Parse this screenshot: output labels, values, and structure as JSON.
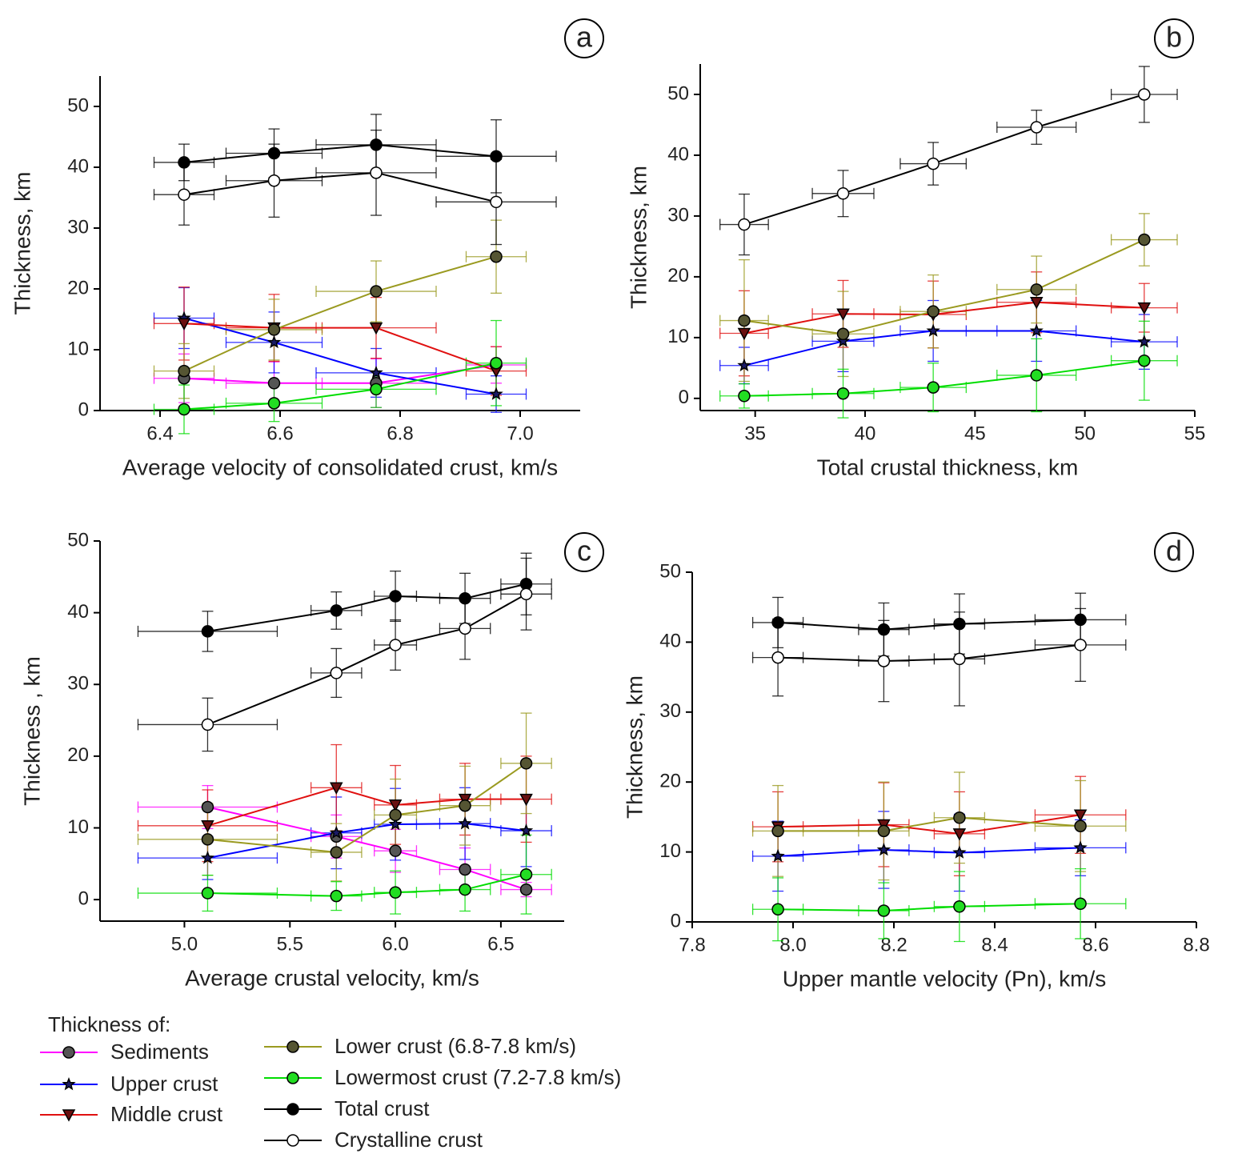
{
  "chart_data": [
    {
      "type": "line",
      "label": "a",
      "x_label": "Average velocity of consolidated crust, km/s",
      "y_label": "Thickness, km",
      "xlim": [
        6.3,
        7.1
      ],
      "ylim": [
        0,
        55
      ],
      "xticks": [
        6.4,
        6.6,
        6.8,
        {
          "value": 7,
          "label": "7.0"
        }
      ],
      "yticks": [
        0,
        10,
        20,
        30,
        40,
        50
      ],
      "x": [
        6.44,
        6.59,
        6.76,
        6.96
      ],
      "series": [
        {
          "name": "Sediments",
          "color": "#ff00ff",
          "marker": "circle",
          "marker_color": "#555555",
          "values": [
            5.3,
            4.5,
            4.5,
            7.5
          ],
          "yerr": [
            4,
            3.5,
            4,
            3
          ],
          "xerr": [
            0.05,
            0.08,
            0.1,
            0.05
          ]
        },
        {
          "name": "Upper crust",
          "color": "#0000ff",
          "marker": "star",
          "marker_color": "#1a1a66",
          "values": [
            15.2,
            11.2,
            6.2,
            2.7
          ],
          "yerr": [
            5,
            5,
            4,
            3
          ],
          "xerr": [
            0.05,
            0.08,
            0.1,
            0.05
          ]
        },
        {
          "name": "Middle crust",
          "color": "#e01010",
          "marker": "triangle",
          "marker_color": "#6a1010",
          "values": [
            14.3,
            13.6,
            13.6,
            6.5
          ],
          "yerr": [
            6,
            5.5,
            5,
            4
          ],
          "xerr": [
            0.05,
            0.08,
            0.1,
            0.05
          ]
        },
        {
          "name": "Lower crust (6.8-7.8 km/s)",
          "color": "#9a9a20",
          "marker": "circle",
          "marker_color": "#555533",
          "values": [
            6.5,
            13.3,
            19.6,
            25.3
          ],
          "yerr": [
            4.5,
            5,
            5,
            6
          ],
          "xerr": [
            0.05,
            0.08,
            0.1,
            0.05
          ]
        },
        {
          "name": "Lowermost crust (7.2-7.8 km/s)",
          "color": "#00dd00",
          "marker": "circle",
          "marker_color": "#22dd22",
          "values": [
            0.2,
            1.2,
            3.5,
            7.8
          ],
          "yerr": [
            4,
            3,
            3,
            7
          ],
          "xerr": [
            0.05,
            0.08,
            0.1,
            0.05
          ]
        },
        {
          "name": "Total crust",
          "color": "#000000",
          "marker": "circle",
          "marker_color": "#000000",
          "values": [
            40.8,
            42.3,
            43.7,
            41.8
          ],
          "yerr": [
            3,
            4,
            5,
            6
          ],
          "xerr": [
            0.05,
            0.08,
            0.1,
            0.1
          ]
        },
        {
          "name": "Crystalline crust",
          "color": "#000000",
          "marker": "circle",
          "marker_color": "#ffffff",
          "values": [
            35.5,
            37.8,
            39.1,
            34.3
          ],
          "yerr": [
            5,
            6,
            7,
            7
          ],
          "xerr": [
            0.05,
            0.08,
            0.1,
            0.1
          ]
        }
      ]
    },
    {
      "type": "line",
      "label": "b",
      "x_label": "Total crustal thickness, km",
      "y_label": "Thickness, km",
      "xlim": [
        32.5,
        55
      ],
      "ylim": [
        -2,
        55
      ],
      "xticks": [
        35,
        40,
        45,
        50,
        55
      ],
      "yticks": [
        0,
        10,
        20,
        30,
        40,
        50
      ],
      "x": [
        34.5,
        39,
        43.1,
        47.8,
        52.7
      ],
      "series": [
        {
          "name": "Upper crust",
          "color": "#0000ff",
          "marker": "star",
          "marker_color": "#1a1a66",
          "values": [
            5.4,
            9.4,
            11.1,
            11.1,
            9.3
          ],
          "yerr": [
            3,
            5,
            5,
            5,
            4.5
          ],
          "xerr": [
            1.1,
            1.4,
            1.5,
            1.8,
            1.5
          ]
        },
        {
          "name": "Middle crust",
          "color": "#e01010",
          "marker": "triangle",
          "marker_color": "#6a1010",
          "values": [
            10.7,
            13.9,
            13.8,
            15.8,
            14.9
          ],
          "yerr": [
            7,
            5.5,
            5.5,
            5,
            4
          ],
          "xerr": [
            1.1,
            1.4,
            1.5,
            1.8,
            1.5
          ]
        },
        {
          "name": "Lower crust (6.8-7.8 km/s)",
          "color": "#9a9a20",
          "marker": "circle",
          "marker_color": "#555533",
          "values": [
            12.8,
            10.6,
            14.3,
            17.9,
            26.1
          ],
          "yerr": [
            10,
            7,
            6,
            5.5,
            4.3
          ],
          "xerr": [
            1.1,
            1.4,
            1.5,
            1.8,
            1.5
          ]
        },
        {
          "name": "Lowermost crust (7.2-7.8 km/s)",
          "color": "#00dd00",
          "marker": "circle",
          "marker_color": "#22dd22",
          "values": [
            0.4,
            0.8,
            1.8,
            3.8,
            6.2
          ],
          "yerr": [
            2,
            4,
            4,
            6,
            6.5
          ],
          "xerr": [
            1.1,
            1.4,
            1.5,
            1.8,
            1.5
          ]
        },
        {
          "name": "Crystalline crust",
          "color": "#000000",
          "marker": "circle",
          "marker_color": "#ffffff",
          "values": [
            28.6,
            33.7,
            38.6,
            44.6,
            50
          ],
          "yerr": [
            5,
            3.8,
            3.5,
            2.8,
            4.6
          ],
          "xerr": [
            1.1,
            1.4,
            1.5,
            1.8,
            1.5
          ]
        }
      ]
    },
    {
      "type": "line",
      "label": "c",
      "x_label": "Average crustal velocity, km/s",
      "y_label": "Thickness , km",
      "xlim": [
        4.6,
        6.8
      ],
      "ylim": [
        -3,
        50
      ],
      "xticks": [
        {
          "value": 5,
          "label": "5.0"
        },
        5.5,
        {
          "value": 6,
          "label": "6.0"
        },
        6.5
      ],
      "yticks": [
        0,
        10,
        20,
        30,
        40,
        50
      ],
      "x": [
        5.11,
        5.72,
        6.0,
        6.33,
        6.62
      ],
      "series": [
        {
          "name": "Sediments",
          "color": "#ff00ff",
          "marker": "circle",
          "marker_color": "#555555",
          "values": [
            12.9,
            8.8,
            6.8,
            4.2,
            1.4
          ],
          "yerr": [
            3,
            3,
            3,
            3,
            1
          ],
          "xerr": [
            0.33,
            0.12,
            0.1,
            0.12,
            0.12
          ]
        },
        {
          "name": "Upper crust",
          "color": "#0000ff",
          "marker": "star",
          "marker_color": "#1a1a66",
          "values": [
            5.8,
            9.3,
            10.5,
            10.6,
            9.6
          ],
          "yerr": [
            3,
            5,
            5,
            5,
            5
          ],
          "xerr": [
            0.33,
            0.12,
            0.1,
            0.12,
            0.12
          ]
        },
        {
          "name": "Middle crust",
          "color": "#e01010",
          "marker": "triangle",
          "marker_color": "#6a1010",
          "values": [
            10.3,
            15.6,
            13.2,
            14,
            14
          ],
          "yerr": [
            5,
            6,
            5.5,
            5,
            6
          ],
          "xerr": [
            0.33,
            0.12,
            0.1,
            0.12,
            0.12
          ]
        },
        {
          "name": "Lower crust (6.8-7.8 km/s)",
          "color": "#9a9a20",
          "marker": "circle",
          "marker_color": "#555533",
          "values": [
            8.4,
            6.6,
            11.8,
            13.1,
            19
          ],
          "yerr": [
            5,
            4,
            5,
            5.5,
            7
          ],
          "xerr": [
            0.33,
            0.12,
            0.1,
            0.12,
            0.12
          ]
        },
        {
          "name": "Lowermost crust (7.2-7.8 km/s)",
          "color": "#00dd00",
          "marker": "circle",
          "marker_color": "#22dd22",
          "values": [
            0.9,
            0.5,
            1,
            1.4,
            3.5
          ],
          "yerr": [
            2.5,
            2,
            3,
            3,
            5.5
          ],
          "xerr": [
            0.33,
            0.12,
            0.1,
            0.12,
            0.12
          ]
        },
        {
          "name": "Total crust",
          "color": "#000000",
          "marker": "circle",
          "marker_color": "#000000",
          "values": [
            37.4,
            40.3,
            42.3,
            42,
            44
          ],
          "yerr": [
            2.8,
            2.6,
            3.5,
            3.5,
            4.3
          ],
          "xerr": [
            0.33,
            0.12,
            0.1,
            0.12,
            0.12
          ]
        },
        {
          "name": "Crystalline crust",
          "color": "#000000",
          "marker": "circle",
          "marker_color": "#ffffff",
          "values": [
            24.4,
            31.6,
            35.5,
            37.8,
            42.6
          ],
          "yerr": [
            3.7,
            3.4,
            3.5,
            4.3,
            5
          ],
          "xerr": [
            0.33,
            0.12,
            0.1,
            0.12,
            0.12
          ]
        }
      ]
    },
    {
      "type": "line",
      "label": "d",
      "x_label": "Upper mantle velocity (Pn), km/s",
      "y_label": "Thickness, km",
      "xlim": [
        7.8,
        8.8
      ],
      "ylim": [
        0,
        50
      ],
      "xticks": [
        7.8,
        {
          "value": 8,
          "label": "8.0"
        },
        8.2,
        8.4,
        8.6,
        8.8
      ],
      "yticks": [
        0,
        10,
        20,
        30,
        40,
        50
      ],
      "x": [
        7.97,
        8.18,
        8.33,
        8.57
      ],
      "series": [
        {
          "name": "Upper crust",
          "color": "#0000ff",
          "marker": "star",
          "marker_color": "#1a1a66",
          "values": [
            9.4,
            10.3,
            9.9,
            10.6
          ],
          "yerr": [
            5,
            5.5,
            5.5,
            4
          ],
          "xerr": [
            0.05,
            0.05,
            0.05,
            0.09
          ]
        },
        {
          "name": "Middle crust",
          "color": "#e01010",
          "marker": "triangle",
          "marker_color": "#6a1010",
          "values": [
            13.6,
            13.9,
            12.6,
            15.3
          ],
          "yerr": [
            5,
            6,
            6,
            5.5
          ],
          "xerr": [
            0.05,
            0.05,
            0.05,
            0.09
          ]
        },
        {
          "name": "Lower crust (6.8-7.8 km/s)",
          "color": "#9a9a20",
          "marker": "circle",
          "marker_color": "#555533",
          "values": [
            13,
            13,
            14.9,
            13.7
          ],
          "yerr": [
            6.5,
            7,
            6.5,
            6.5
          ],
          "xerr": [
            0.05,
            0.05,
            0.05,
            0.09
          ]
        },
        {
          "name": "Lowermost crust (7.2-7.8 km/s)",
          "color": "#00dd00",
          "marker": "circle",
          "marker_color": "#22dd22",
          "values": [
            1.8,
            1.6,
            2.2,
            2.6
          ],
          "yerr": [
            4.5,
            4,
            5,
            5
          ],
          "xerr": [
            0.05,
            0.05,
            0.05,
            0.09
          ]
        },
        {
          "name": "Total crust",
          "color": "#000000",
          "marker": "circle",
          "marker_color": "#000000",
          "values": [
            42.8,
            41.8,
            42.6,
            43.2
          ],
          "yerr": [
            3.6,
            3.8,
            4.3,
            3.8
          ],
          "xerr": [
            0.05,
            0.05,
            0.05,
            0.09
          ]
        },
        {
          "name": "Crystalline crust",
          "color": "#000000",
          "marker": "circle",
          "marker_color": "#ffffff",
          "values": [
            37.8,
            37.3,
            37.6,
            39.6
          ],
          "yerr": [
            5.5,
            5.8,
            6.7,
            5.2
          ],
          "xerr": [
            0.05,
            0.05,
            0.05,
            0.09
          ]
        }
      ]
    }
  ],
  "legend_title": "Thickness of:"
}
